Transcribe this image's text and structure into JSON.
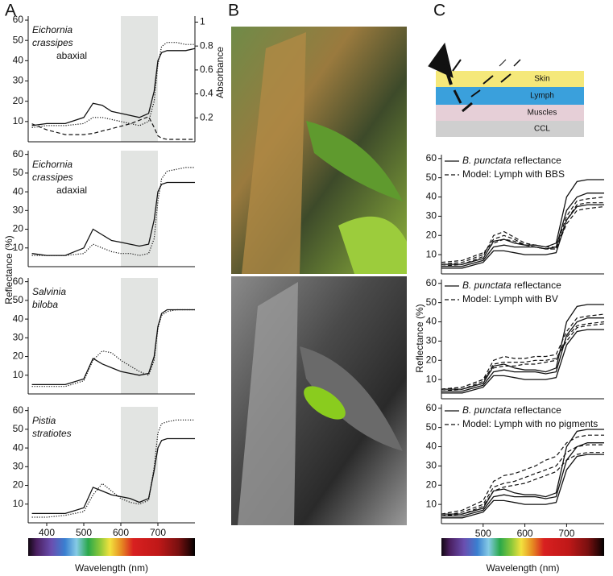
{
  "panels": [
    {
      "label": "A"
    },
    {
      "label": "B"
    },
    {
      "label": "C"
    }
  ],
  "diagram": {
    "layers": [
      "Skin",
      "Lymph",
      "Muscles",
      "CCL"
    ]
  },
  "chart_data": [
    {
      "type": "line",
      "annotation": {
        "species": [
          "Eichornia",
          "crassipes"
        ],
        "side": "abaxial"
      },
      "x": [
        360,
        400,
        450,
        500,
        525,
        550,
        575,
        600,
        625,
        650,
        675,
        690,
        700,
        710,
        725,
        750,
        775,
        800
      ],
      "xlim": [
        350,
        800
      ],
      "ylim": [
        0,
        62
      ],
      "yticks": [
        10,
        20,
        30,
        40,
        50,
        60
      ],
      "y2lim": [
        0,
        1.05
      ],
      "y2ticks": [
        0.2,
        0.4,
        0.6,
        0.8,
        1
      ],
      "y2label": "Absorbance",
      "highlight": [
        600,
        700
      ],
      "series": [
        {
          "style": "solid",
          "values": [
            8,
            9,
            9,
            12,
            19,
            18,
            15,
            14,
            13,
            12,
            14,
            25,
            40,
            44,
            45,
            45,
            45,
            46
          ]
        },
        {
          "style": "dotted",
          "values": [
            7,
            8,
            8,
            9,
            12,
            12,
            11,
            10,
            9,
            8,
            10,
            20,
            38,
            47,
            49,
            49,
            48,
            48
          ]
        },
        {
          "style": "dashed",
          "axis": "y2",
          "values": [
            0.15,
            0.1,
            0.06,
            0.06,
            0.07,
            0.09,
            0.11,
            0.13,
            0.15,
            0.18,
            0.21,
            0.12,
            0.05,
            0.03,
            0.02,
            0.02,
            0.02,
            0.02
          ]
        }
      ]
    },
    {
      "type": "line",
      "annotation": {
        "species": [
          "Eichornia",
          "crassipes"
        ],
        "side": "adaxial"
      },
      "x": [
        360,
        400,
        450,
        500,
        525,
        550,
        575,
        600,
        625,
        650,
        675,
        690,
        700,
        710,
        725,
        750,
        775,
        800
      ],
      "xlim": [
        350,
        800
      ],
      "ylim": [
        0,
        62
      ],
      "yticks": [
        10,
        20,
        30,
        40,
        50,
        60
      ],
      "ylabel": "Reflectance (%)",
      "highlight": [
        600,
        700
      ],
      "series": [
        {
          "style": "solid",
          "values": [
            7,
            6,
            6,
            10,
            20,
            17,
            14,
            13,
            12,
            11,
            12,
            25,
            40,
            44,
            45,
            45,
            45,
            45
          ]
        },
        {
          "style": "dotted",
          "values": [
            6,
            6,
            6,
            7,
            12,
            10,
            8,
            7,
            7,
            6,
            7,
            15,
            35,
            47,
            51,
            52,
            53,
            53
          ]
        }
      ]
    },
    {
      "type": "line",
      "annotation": {
        "species": [
          "Salvinia",
          "biloba"
        ]
      },
      "x": [
        360,
        400,
        450,
        500,
        525,
        550,
        575,
        600,
        625,
        650,
        675,
        690,
        700,
        710,
        725,
        750,
        775,
        800
      ],
      "xlim": [
        350,
        800
      ],
      "ylim": [
        0,
        62
      ],
      "yticks": [
        10,
        20,
        30,
        40,
        50,
        60
      ],
      "highlight": [
        600,
        700
      ],
      "series": [
        {
          "style": "solid",
          "values": [
            5,
            5,
            5,
            8,
            19,
            16,
            14,
            12,
            11,
            10,
            11,
            20,
            36,
            43,
            45,
            45,
            45,
            45
          ]
        },
        {
          "style": "dotted",
          "values": [
            4,
            4,
            4,
            7,
            18,
            23,
            22,
            18,
            15,
            12,
            10,
            18,
            35,
            42,
            44,
            45,
            45,
            45
          ]
        }
      ]
    },
    {
      "type": "line",
      "annotation": {
        "species": [
          "Pistia",
          "stratiotes"
        ]
      },
      "x": [
        360,
        400,
        450,
        500,
        525,
        550,
        575,
        600,
        625,
        650,
        675,
        690,
        700,
        710,
        725,
        750,
        775,
        800
      ],
      "xlim": [
        350,
        800
      ],
      "ylim": [
        0,
        62
      ],
      "yticks": [
        10,
        20,
        30,
        40,
        50,
        60
      ],
      "xticks": [
        400,
        500,
        600,
        700
      ],
      "xlabel": "Wavelength (nm)",
      "highlight": [
        600,
        700
      ],
      "series": [
        {
          "style": "solid",
          "values": [
            5,
            5,
            5,
            8,
            19,
            17,
            15,
            14,
            13,
            11,
            13,
            28,
            40,
            44,
            45,
            45,
            45,
            45
          ]
        },
        {
          "style": "dotted",
          "values": [
            3,
            3,
            4,
            6,
            15,
            21,
            17,
            13,
            11,
            10,
            12,
            30,
            48,
            53,
            54,
            55,
            55,
            55
          ]
        }
      ]
    },
    {
      "type": "line",
      "legend": [
        {
          "style": "solid",
          "italic": "B. punctata",
          "text": "reflectance"
        },
        {
          "style": "dashed",
          "text": "Model: Lymph with BBS"
        }
      ],
      "x": [
        400,
        450,
        500,
        525,
        550,
        575,
        600,
        625,
        650,
        675,
        700,
        725,
        750,
        790
      ],
      "xlim": [
        400,
        790
      ],
      "ylim": [
        0,
        62
      ],
      "yticks": [
        10,
        20,
        30,
        40,
        50,
        60
      ],
      "series": [
        {
          "style": "solid",
          "values": [
            5,
            5,
            8,
            17,
            18,
            16,
            15,
            15,
            14,
            16,
            40,
            48,
            49,
            49
          ]
        },
        {
          "style": "solid",
          "values": [
            4,
            4,
            7,
            14,
            15,
            14,
            14,
            14,
            13,
            14,
            33,
            40,
            42,
            42
          ]
        },
        {
          "style": "solid",
          "values": [
            3,
            3,
            6,
            12,
            12,
            11,
            10,
            10,
            10,
            11,
            28,
            35,
            36,
            36
          ]
        },
        {
          "style": "dashed",
          "values": [
            4,
            5,
            9,
            20,
            22,
            19,
            16,
            15,
            14,
            14,
            30,
            38,
            39,
            40
          ]
        },
        {
          "style": "dashed",
          "values": [
            5,
            6,
            10,
            18,
            20,
            18,
            15,
            14,
            13,
            13,
            26,
            33,
            34,
            35
          ]
        },
        {
          "style": "dashed",
          "values": [
            6,
            7,
            11,
            16,
            18,
            17,
            15,
            14,
            13,
            13,
            28,
            36,
            37,
            37
          ]
        }
      ]
    },
    {
      "type": "line",
      "ylabel": "Reflectance (%)",
      "legend": [
        {
          "style": "solid",
          "italic": "B. punctata",
          "text": "reflectance"
        },
        {
          "style": "dashed",
          "text": "Model: Lymph with BV"
        }
      ],
      "x": [
        400,
        450,
        500,
        525,
        550,
        575,
        600,
        625,
        650,
        675,
        700,
        725,
        750,
        790
      ],
      "xlim": [
        400,
        790
      ],
      "ylim": [
        0,
        62
      ],
      "yticks": [
        10,
        20,
        30,
        40,
        50,
        60
      ],
      "series": [
        {
          "style": "solid",
          "values": [
            5,
            5,
            8,
            17,
            18,
            16,
            15,
            15,
            14,
            16,
            40,
            48,
            49,
            49
          ]
        },
        {
          "style": "solid",
          "values": [
            4,
            4,
            7,
            14,
            15,
            14,
            14,
            14,
            13,
            14,
            33,
            40,
            42,
            42
          ]
        },
        {
          "style": "solid",
          "values": [
            3,
            3,
            6,
            12,
            12,
            11,
            10,
            10,
            10,
            11,
            28,
            35,
            36,
            36
          ]
        },
        {
          "style": "dashed",
          "values": [
            5,
            6,
            10,
            20,
            22,
            21,
            21,
            22,
            22,
            23,
            35,
            42,
            43,
            44
          ]
        },
        {
          "style": "dashed",
          "values": [
            4,
            5,
            9,
            18,
            19,
            19,
            19,
            20,
            20,
            21,
            30,
            37,
            38,
            39
          ]
        },
        {
          "style": "dashed",
          "values": [
            5,
            6,
            10,
            16,
            17,
            17,
            18,
            18,
            19,
            20,
            32,
            38,
            39,
            40
          ]
        }
      ]
    },
    {
      "type": "line",
      "xticks": [
        500,
        600,
        700
      ],
      "xlabel": "Wavelength (nm)",
      "legend": [
        {
          "style": "solid",
          "italic": "B. punctata",
          "text": "reflectance"
        },
        {
          "style": "dashed",
          "text": "Model: Lymph with no pigments"
        }
      ],
      "x": [
        400,
        450,
        500,
        525,
        550,
        575,
        600,
        625,
        650,
        675,
        700,
        725,
        750,
        790
      ],
      "xlim": [
        400,
        790
      ],
      "ylim": [
        0,
        62
      ],
      "yticks": [
        10,
        20,
        30,
        40,
        50,
        60
      ],
      "series": [
        {
          "style": "solid",
          "values": [
            5,
            5,
            8,
            17,
            18,
            16,
            15,
            15,
            14,
            16,
            40,
            48,
            49,
            49
          ]
        },
        {
          "style": "solid",
          "values": [
            4,
            4,
            7,
            14,
            15,
            14,
            14,
            14,
            13,
            14,
            33,
            40,
            42,
            42
          ]
        },
        {
          "style": "solid",
          "values": [
            3,
            3,
            6,
            12,
            12,
            11,
            10,
            10,
            10,
            11,
            28,
            35,
            36,
            36
          ]
        },
        {
          "style": "dashed",
          "values": [
            5,
            7,
            12,
            22,
            25,
            26,
            28,
            30,
            33,
            35,
            42,
            45,
            46,
            46
          ]
        },
        {
          "style": "dashed",
          "values": [
            4,
            6,
            10,
            19,
            21,
            22,
            24,
            26,
            28,
            30,
            37,
            40,
            41,
            41
          ]
        },
        {
          "style": "dashed",
          "values": [
            4,
            5,
            9,
            17,
            19,
            20,
            21,
            23,
            25,
            27,
            33,
            36,
            37,
            37
          ]
        }
      ]
    }
  ]
}
